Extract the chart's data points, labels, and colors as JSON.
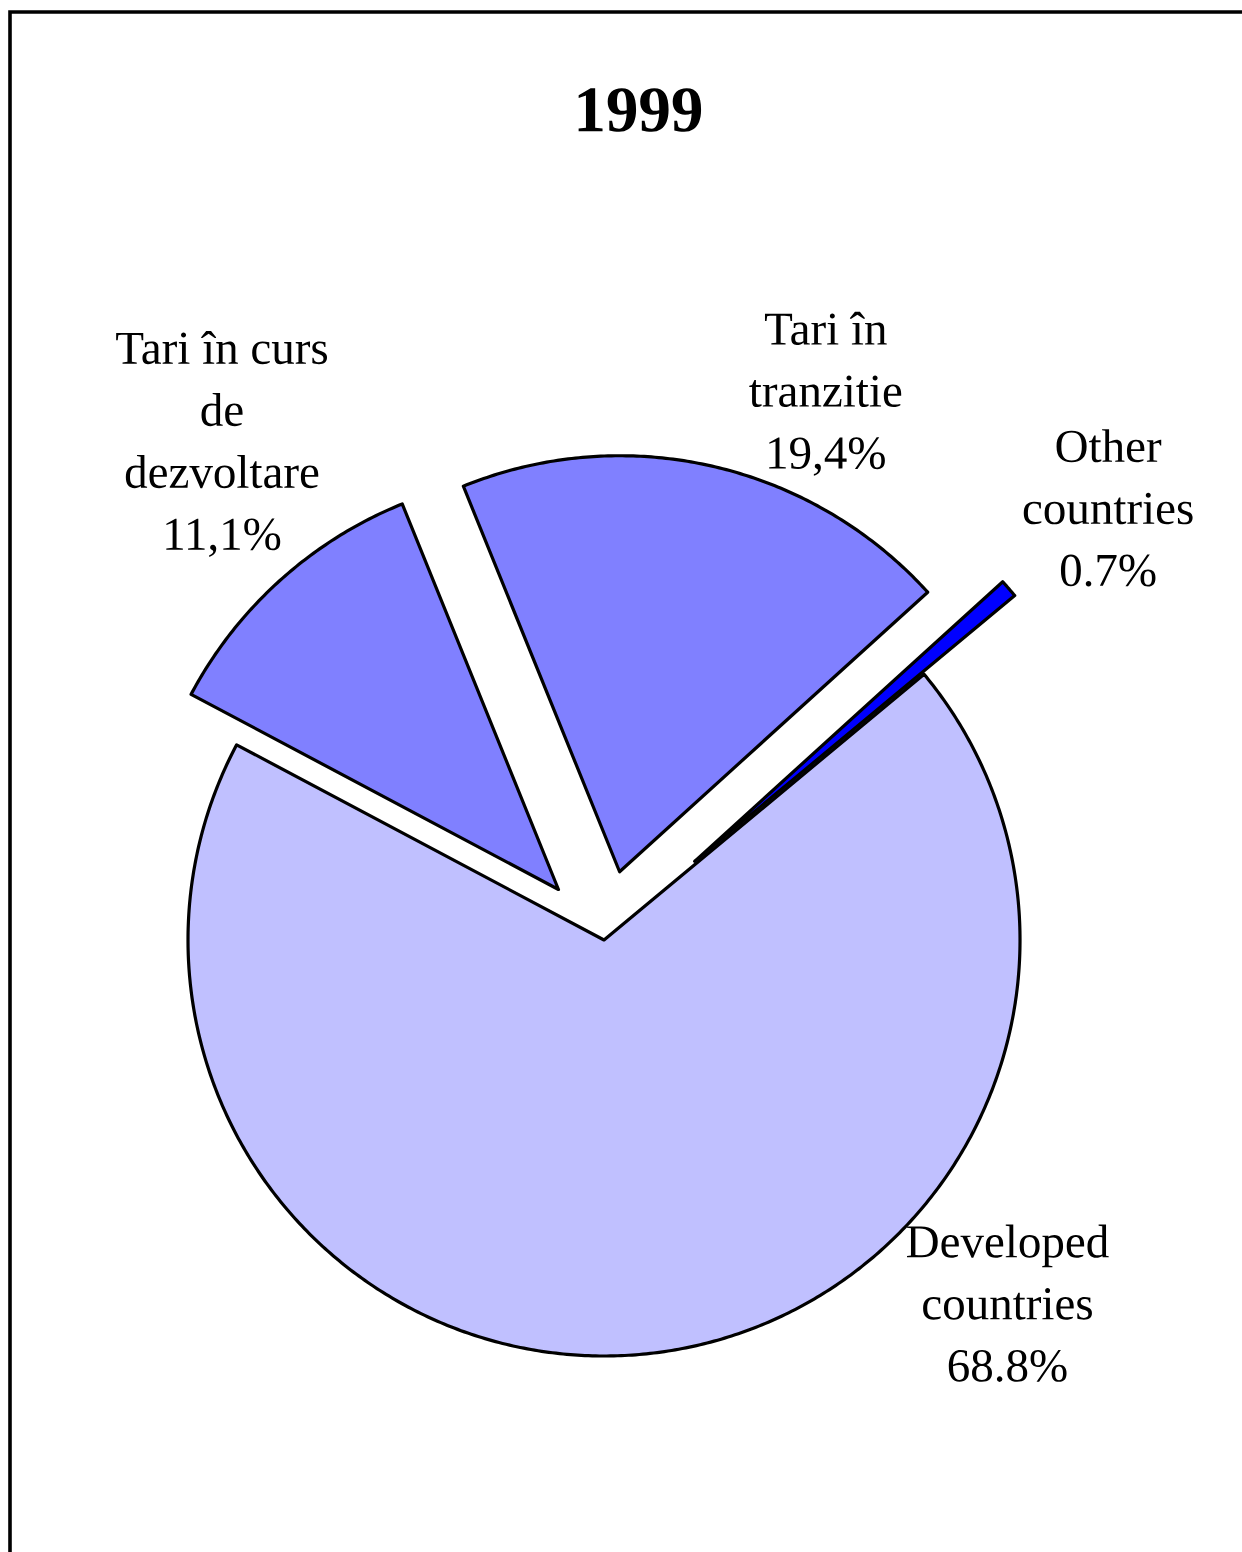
{
  "chart_data": {
    "type": "pie",
    "title": "1999",
    "categories": [
      "Developed countries",
      "Tari în curs de dezvoltare",
      "Tari în tranzitie",
      "Other countries"
    ],
    "values": [
      68.8,
      11.1,
      19.4,
      0.7
    ],
    "value_labels": [
      "68.8%",
      "11,1%",
      "19,4%",
      "0.7%"
    ],
    "colors": [
      "#c0c0ff",
      "#8080ff",
      "#8080ff",
      "#0000ff"
    ]
  }
}
